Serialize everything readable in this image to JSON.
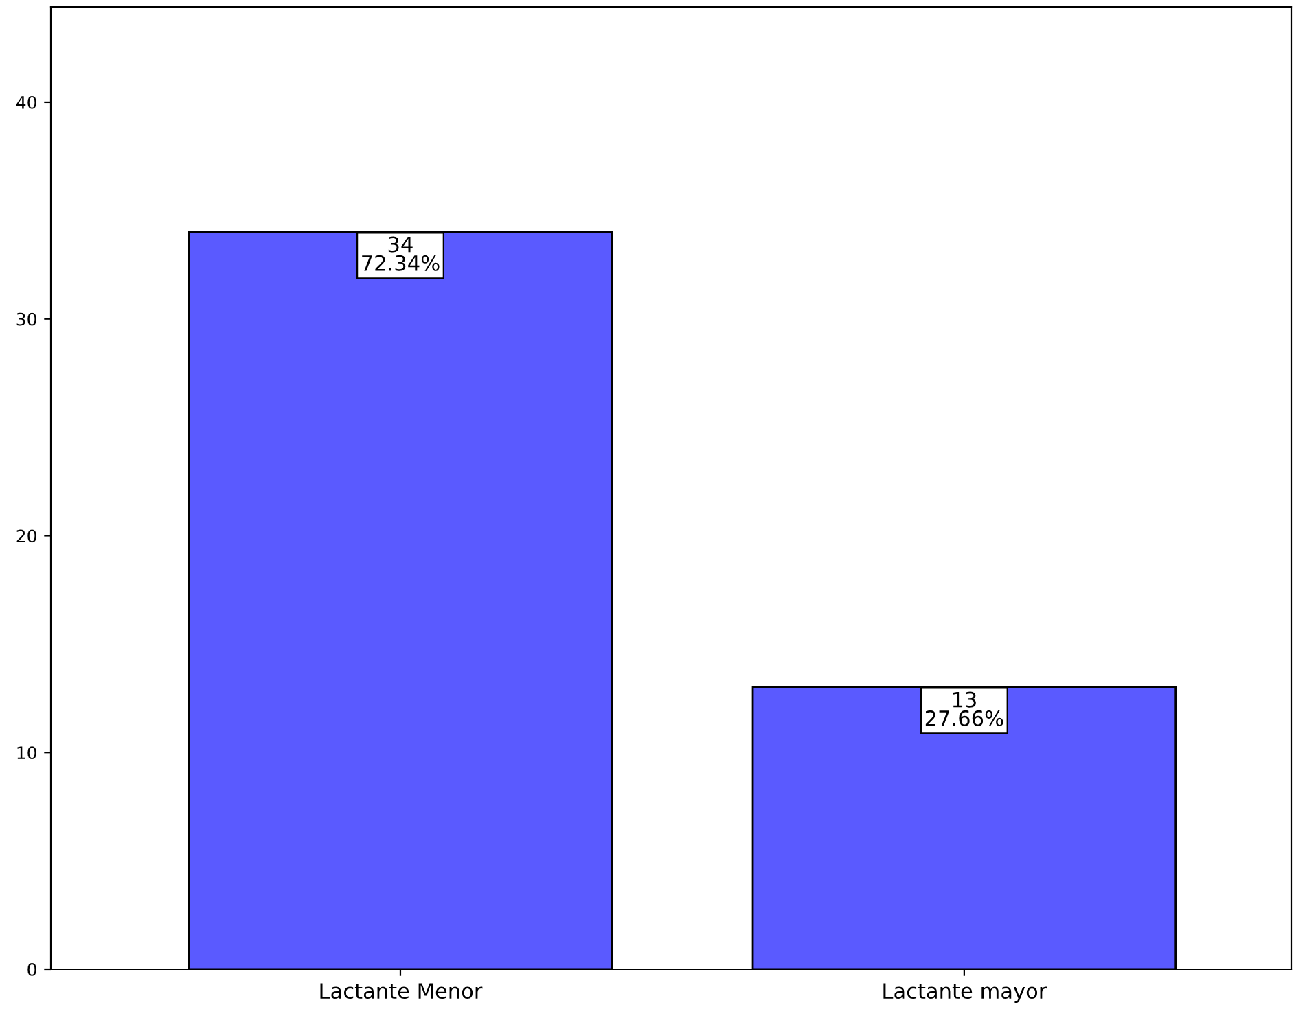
{
  "chart_data": {
    "type": "bar",
    "categories": [
      "Lactante Menor",
      "Lactante mayor"
    ],
    "values": [
      34,
      13
    ],
    "value_labels": [
      "34\n72.34%",
      "13\n27.66%"
    ],
    "color": "#5a5aff",
    "ylim": [
      0,
      44.4
    ],
    "yticks": [
      0,
      10,
      20,
      30,
      40
    ],
    "grid": false,
    "legend": false
  }
}
